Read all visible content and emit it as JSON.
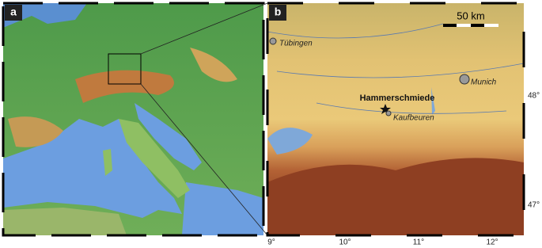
{
  "panel_a": {
    "label": "a"
  },
  "panel_b": {
    "label": "b",
    "scale_bar": "50 km",
    "places": [
      "Tübingen",
      "Munich",
      "Kaufbeuren"
    ],
    "site": "Hammerschmiede"
  },
  "axes": {
    "lat_labels": [
      "48°",
      "47°"
    ],
    "lon_labels": [
      "9°",
      "10°",
      "11°",
      "12°"
    ]
  }
}
